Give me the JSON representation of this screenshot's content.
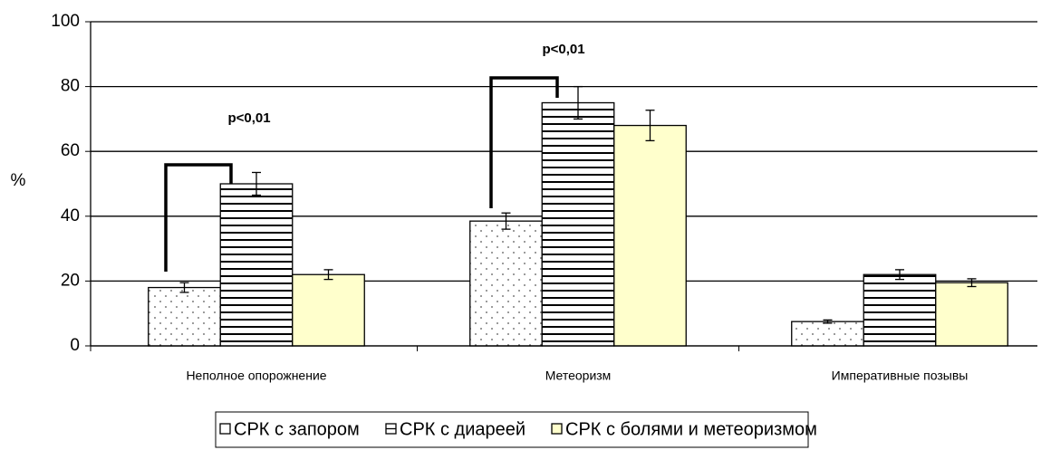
{
  "chart_data": {
    "type": "bar",
    "ylabel": "%",
    "categories": [
      "Неполное опорожнение",
      "Метеоризм",
      "Императивные позывы"
    ],
    "series": [
      {
        "name": "СРК с запором",
        "color": "#ffffff",
        "pattern": "dots",
        "values": [
          18,
          38.5,
          7.5
        ],
        "errors": [
          1.5,
          2.5,
          0.5
        ]
      },
      {
        "name": "СРК с диареей",
        "color": "#ffffff",
        "pattern": "hlines",
        "values": [
          50,
          75,
          22
        ],
        "errors": [
          3.5,
          5,
          1.5
        ]
      },
      {
        "name": "СРК с болями и метеоризмом",
        "color": "#ffffcc",
        "pattern": "none",
        "values": [
          22,
          68,
          19.5
        ],
        "errors": [
          1.5,
          4.7,
          1.2
        ]
      }
    ],
    "annotations": [
      "p<0,01",
      "p<0,01"
    ],
    "ylim": [
      0,
      100
    ],
    "yticks": [
      0,
      20,
      40,
      60,
      80,
      100
    ],
    "grid": true,
    "legend": "bottom"
  }
}
